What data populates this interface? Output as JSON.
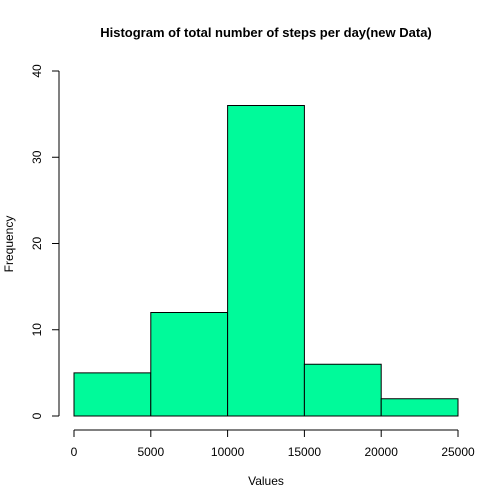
{
  "chart_data": {
    "type": "bar",
    "title": "Histogram of total number of steps per day(new Data)",
    "xlabel": "Values",
    "ylabel": "Frequency",
    "bins": [
      {
        "from": 0,
        "to": 5000,
        "value": 5
      },
      {
        "from": 5000,
        "to": 10000,
        "value": 12
      },
      {
        "from": 10000,
        "to": 15000,
        "value": 36
      },
      {
        "from": 15000,
        "to": 20000,
        "value": 6
      },
      {
        "from": 20000,
        "to": 25000,
        "value": 2
      }
    ],
    "xlim": [
      0,
      25000
    ],
    "ylim": [
      0,
      40
    ],
    "xticks": [
      "0",
      "5000",
      "10000",
      "15000",
      "20000",
      "25000"
    ],
    "yticks": [
      "0",
      "10",
      "20",
      "30",
      "40"
    ],
    "bar_color": "#00FA9A",
    "grid": false,
    "legend": "none"
  }
}
